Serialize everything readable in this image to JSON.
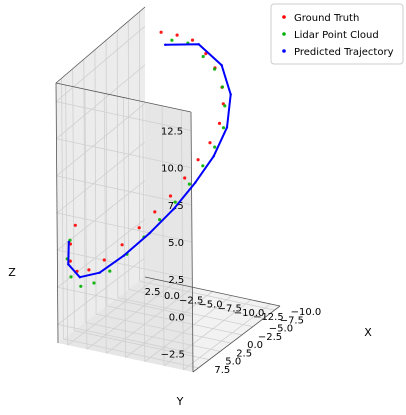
{
  "chart_data": {
    "type": "scatter",
    "projection": "3d",
    "title": "",
    "xlabel": "X",
    "ylabel": "Y",
    "zlabel": "Z",
    "xlim": [
      -10.0,
      7.5
    ],
    "ylim": [
      -13.5,
      3.5
    ],
    "zlim": [
      -2.5,
      13.5
    ],
    "x_ticks": [
      "7.5",
      "5.0",
      "2.5",
      "0.0",
      "−2.5",
      "−5.0",
      "−7.5",
      "−10.0"
    ],
    "y_ticks": [
      "2.5",
      "0.0",
      "−2.5",
      "−5.0",
      "−7.5",
      "−10.0",
      "−12.5"
    ],
    "z_ticks": [
      "12.5",
      "10.0",
      "7.5",
      "5.0",
      "2.5",
      "0.0",
      "−2.5"
    ],
    "grid": true,
    "legend": {
      "position": "top-right",
      "entries": [
        {
          "label": "Ground Truth",
          "color": "#ff0000"
        },
        {
          "label": "Lidar Point Cloud",
          "color": "#00b000"
        },
        {
          "label": "Predicted Trajectory",
          "color": "#0000ff"
        }
      ]
    },
    "series": [
      {
        "name": "Ground Truth",
        "color": "#ff0000",
        "mode": "markers",
        "points": [
          [
            -7.5,
            0.0,
            13.0
          ],
          [
            -8.2,
            -1.5,
            12.8
          ],
          [
            -8.8,
            -3.0,
            12.5
          ],
          [
            -9.0,
            -4.5,
            11.8
          ],
          [
            -9.2,
            -5.5,
            11.0
          ],
          [
            -9.0,
            -6.5,
            10.0
          ],
          [
            -8.5,
            -7.0,
            9.2
          ],
          [
            -7.5,
            -7.2,
            8.3
          ],
          [
            -6.0,
            -7.0,
            7.5
          ],
          [
            -4.5,
            -6.5,
            6.8
          ],
          [
            -3.0,
            -5.8,
            6.0
          ],
          [
            -1.5,
            -5.0,
            5.2
          ],
          [
            0.0,
            -4.0,
            4.5
          ],
          [
            1.5,
            -3.0,
            3.8
          ],
          [
            3.0,
            -1.8,
            3.0
          ],
          [
            4.5,
            -0.5,
            2.3
          ],
          [
            5.5,
            0.8,
            1.8
          ],
          [
            6.3,
            1.8,
            1.8
          ],
          [
            6.5,
            2.5,
            2.4
          ],
          [
            6.0,
            2.8,
            3.3
          ],
          [
            5.0,
            2.8,
            4.2
          ]
        ]
      },
      {
        "name": "Lidar Point Cloud",
        "color": "#00b000",
        "mode": "markers",
        "points": [
          [
            -8.0,
            -1.0,
            12.5
          ],
          [
            -8.7,
            -2.5,
            12.3
          ],
          [
            -9.3,
            -4.0,
            11.5
          ],
          [
            -9.6,
            -5.2,
            10.8
          ],
          [
            -9.4,
            -6.3,
            9.9
          ],
          [
            -8.8,
            -7.0,
            9.0
          ],
          [
            -7.8,
            -7.5,
            8.0
          ],
          [
            -6.3,
            -7.4,
            7.2
          ],
          [
            -4.8,
            -6.9,
            6.4
          ],
          [
            -3.3,
            -6.2,
            5.6
          ],
          [
            -1.8,
            -5.4,
            4.8
          ],
          [
            -0.3,
            -4.4,
            4.0
          ],
          [
            1.2,
            -3.4,
            3.2
          ],
          [
            2.7,
            -2.2,
            2.4
          ],
          [
            4.2,
            -1.0,
            1.6
          ],
          [
            5.3,
            0.3,
            1.0
          ],
          [
            6.2,
            1.4,
            0.9
          ],
          [
            6.7,
            2.3,
            1.5
          ],
          [
            6.5,
            2.9,
            2.5
          ],
          [
            5.6,
            3.1,
            3.4
          ]
        ]
      },
      {
        "name": "Predicted Trajectory",
        "color": "#0000ff",
        "mode": "line",
        "points": [
          [
            -7.5,
            -0.5,
            12.3
          ],
          [
            -9.2,
            -3.5,
            12.2
          ],
          [
            -10.0,
            -5.8,
            11.0
          ],
          [
            -9.6,
            -7.2,
            9.5
          ],
          [
            -8.0,
            -7.8,
            8.0
          ],
          [
            -5.8,
            -7.6,
            6.8
          ],
          [
            -3.5,
            -6.8,
            5.7
          ],
          [
            -1.0,
            -5.7,
            4.6
          ],
          [
            1.5,
            -4.3,
            3.6
          ],
          [
            3.8,
            -2.5,
            2.6
          ],
          [
            5.6,
            -0.6,
            1.8
          ],
          [
            6.7,
            1.2,
            1.6
          ],
          [
            6.9,
            2.5,
            2.3
          ],
          [
            6.0,
            3.0,
            3.4
          ]
        ]
      }
    ]
  }
}
